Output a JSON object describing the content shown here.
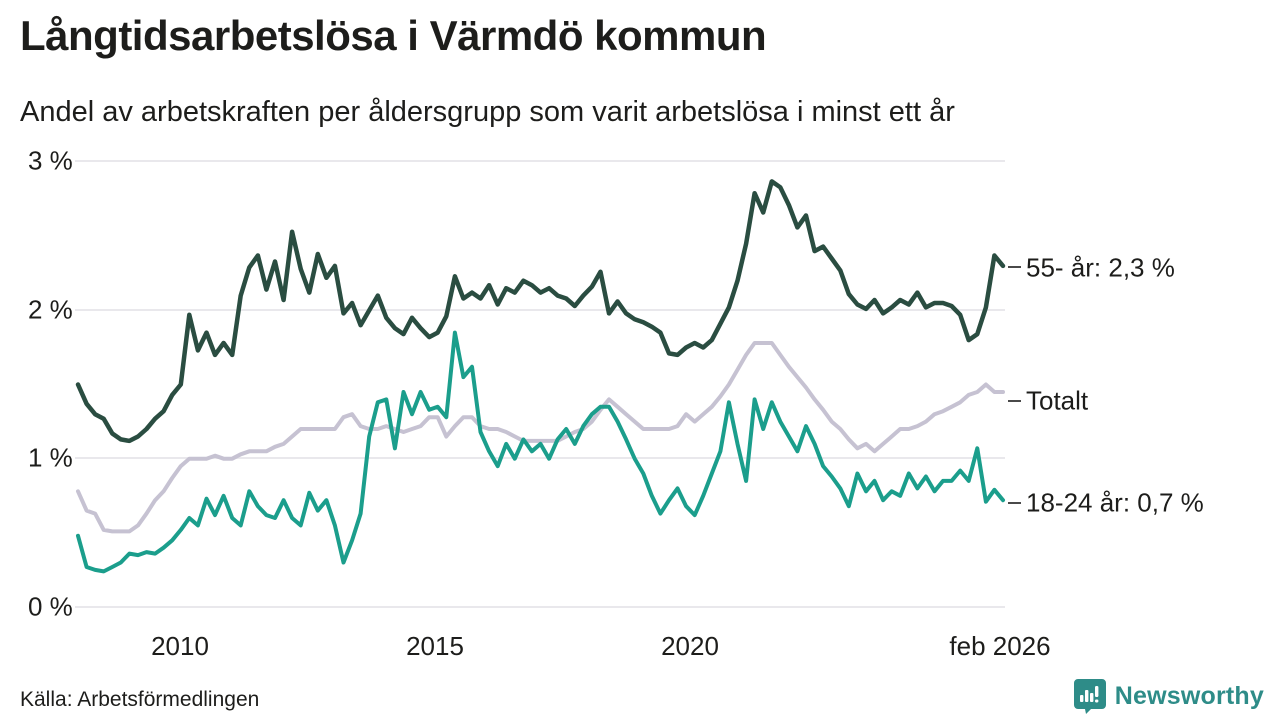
{
  "header": {
    "title": "Långtidsarbetslösa i Värmdö kommun",
    "subtitle": "Andel av arbetskraften per åldersgrupp som varit arbetslösa i minst ett år"
  },
  "footer": {
    "source": "Källa: Arbetsförmedlingen",
    "brand_name": "Newsworthy",
    "brand_color": "#2e8c88",
    "brand_icon": "newsworthy-bar-chart-bubble-icon"
  },
  "colors": {
    "series_55": "#2a4d41",
    "series_total": "#c6c2d2",
    "series_1824": "#1b9e8c",
    "gridline": "#e9e8ec",
    "text": "#1d1d1b",
    "end_tick": "#4a4a4a"
  },
  "chart_data": {
    "type": "line",
    "title": "Långtidsarbetslösa i Värmdö kommun",
    "subtitle": "Andel av arbetskraften per åldersgrupp som varit arbetslösa i minst ett år",
    "unit": "% av arbetskraften",
    "x_unit": "år (månadsdata, feb 2008 – feb 2026)",
    "x_start": 2008.0833,
    "x_end": 2026.0833,
    "points_per_year": 6,
    "ylim": [
      0,
      3
    ],
    "grid": "horizontal",
    "legend_position": "right-of-line-ends",
    "yticks": [
      {
        "v": 3,
        "label": "3 %"
      },
      {
        "v": 2,
        "label": "2 %"
      },
      {
        "v": 1,
        "label": "1 %"
      },
      {
        "v": 0,
        "label": "0 %"
      }
    ],
    "xticks": [
      {
        "x": 2010,
        "label": "2010"
      },
      {
        "x": 2015,
        "label": "2015"
      },
      {
        "x": 2020,
        "label": "2020"
      },
      {
        "x": 2026.083,
        "label": "feb 2026"
      }
    ],
    "series": [
      {
        "name": "55- år",
        "end_label": "55- år: 2,3 %",
        "end_value": "2,3 %",
        "color": "#2a4d41",
        "stroke_width": 4.5,
        "values": [
          1.5,
          1.37,
          1.3,
          1.27,
          1.17,
          1.13,
          1.12,
          1.15,
          1.2,
          1.27,
          1.32,
          1.43,
          1.5,
          1.97,
          1.73,
          1.85,
          1.7,
          1.78,
          1.7,
          2.1,
          2.29,
          2.37,
          2.14,
          2.33,
          2.07,
          2.53,
          2.28,
          2.12,
          2.38,
          2.22,
          2.3,
          1.98,
          2.05,
          1.9,
          2.0,
          2.1,
          1.95,
          1.88,
          1.84,
          1.95,
          1.88,
          1.82,
          1.85,
          1.96,
          2.23,
          2.08,
          2.12,
          2.08,
          2.17,
          2.04,
          2.15,
          2.12,
          2.2,
          2.17,
          2.12,
          2.15,
          2.1,
          2.08,
          2.03,
          2.1,
          2.16,
          2.26,
          1.98,
          2.06,
          1.98,
          1.94,
          1.92,
          1.89,
          1.85,
          1.71,
          1.7,
          1.75,
          1.78,
          1.75,
          1.8,
          1.91,
          2.02,
          2.2,
          2.45,
          2.79,
          2.66,
          2.87,
          2.83,
          2.71,
          2.56,
          2.64,
          2.4,
          2.43,
          2.35,
          2.27,
          2.11,
          2.04,
          2.01,
          2.07,
          1.98,
          2.02,
          2.07,
          2.04,
          2.12,
          2.02,
          2.05,
          2.05,
          2.03,
          1.97,
          1.8,
          1.84,
          2.02,
          2.37,
          2.3
        ]
      },
      {
        "name": "Totalt",
        "end_label": "Totalt",
        "end_value": "1,45 %",
        "color": "#c6c2d2",
        "stroke_width": 4,
        "values": [
          0.78,
          0.65,
          0.63,
          0.52,
          0.51,
          0.51,
          0.51,
          0.55,
          0.63,
          0.72,
          0.78,
          0.87,
          0.95,
          1.0,
          1.0,
          1.0,
          1.02,
          1.0,
          1.0,
          1.03,
          1.05,
          1.05,
          1.05,
          1.08,
          1.1,
          1.15,
          1.2,
          1.2,
          1.2,
          1.2,
          1.2,
          1.28,
          1.3,
          1.22,
          1.2,
          1.2,
          1.22,
          1.2,
          1.18,
          1.2,
          1.22,
          1.28,
          1.28,
          1.15,
          1.22,
          1.28,
          1.28,
          1.22,
          1.2,
          1.2,
          1.18,
          1.15,
          1.12,
          1.12,
          1.12,
          1.12,
          1.12,
          1.15,
          1.18,
          1.2,
          1.25,
          1.33,
          1.4,
          1.35,
          1.3,
          1.25,
          1.2,
          1.2,
          1.2,
          1.2,
          1.22,
          1.3,
          1.25,
          1.3,
          1.35,
          1.42,
          1.5,
          1.6,
          1.7,
          1.78,
          1.78,
          1.78,
          1.7,
          1.62,
          1.55,
          1.48,
          1.4,
          1.33,
          1.25,
          1.2,
          1.13,
          1.07,
          1.1,
          1.05,
          1.1,
          1.15,
          1.2,
          1.2,
          1.22,
          1.25,
          1.3,
          1.32,
          1.35,
          1.38,
          1.43,
          1.45,
          1.5,
          1.45,
          1.45
        ]
      },
      {
        "name": "18-24 år",
        "end_label": "18-24 år: 0,7 %",
        "end_value": "0,7 %",
        "color": "#1b9e8c",
        "stroke_width": 4,
        "values": [
          0.48,
          0.27,
          0.25,
          0.24,
          0.27,
          0.3,
          0.36,
          0.35,
          0.37,
          0.36,
          0.4,
          0.45,
          0.52,
          0.6,
          0.55,
          0.73,
          0.62,
          0.75,
          0.6,
          0.55,
          0.78,
          0.68,
          0.62,
          0.6,
          0.72,
          0.6,
          0.55,
          0.77,
          0.65,
          0.72,
          0.55,
          0.3,
          0.45,
          0.63,
          1.15,
          1.38,
          1.4,
          1.07,
          1.45,
          1.3,
          1.45,
          1.33,
          1.35,
          1.28,
          1.85,
          1.55,
          1.62,
          1.18,
          1.05,
          0.95,
          1.1,
          1.0,
          1.13,
          1.05,
          1.1,
          1.0,
          1.13,
          1.2,
          1.1,
          1.22,
          1.3,
          1.35,
          1.35,
          1.25,
          1.13,
          1.0,
          0.9,
          0.75,
          0.63,
          0.72,
          0.8,
          0.68,
          0.62,
          0.75,
          0.9,
          1.05,
          1.38,
          1.1,
          0.85,
          1.4,
          1.2,
          1.38,
          1.25,
          1.15,
          1.05,
          1.22,
          1.1,
          0.95,
          0.88,
          0.8,
          0.68,
          0.9,
          0.78,
          0.85,
          0.72,
          0.78,
          0.75,
          0.9,
          0.8,
          0.88,
          0.78,
          0.85,
          0.85,
          0.92,
          0.85,
          1.07,
          0.71,
          0.79,
          0.72
        ]
      }
    ]
  }
}
